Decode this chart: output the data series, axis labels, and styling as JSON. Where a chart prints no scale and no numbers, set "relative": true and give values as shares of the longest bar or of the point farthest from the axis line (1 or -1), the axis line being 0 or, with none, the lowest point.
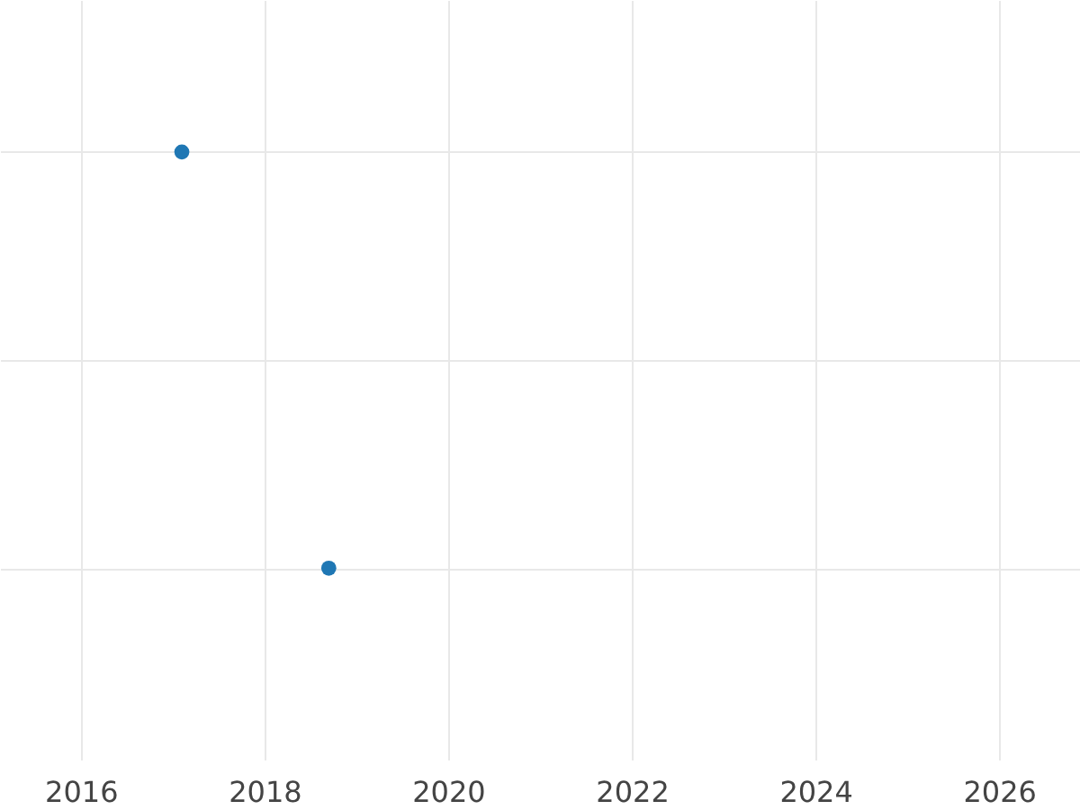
{
  "chart_data": {
    "type": "scatter",
    "relative": true,
    "x": [
      2017.1,
      2018.7
    ],
    "series": [
      {
        "color": "#1f77b4",
        "values": [
          1,
          0
        ]
      }
    ],
    "xlim": [
      2015.12,
      2026.88
    ],
    "xticks": [
      2016,
      2018,
      2020,
      2022,
      2024,
      2026
    ],
    "grid": true,
    "marker": "circle"
  }
}
